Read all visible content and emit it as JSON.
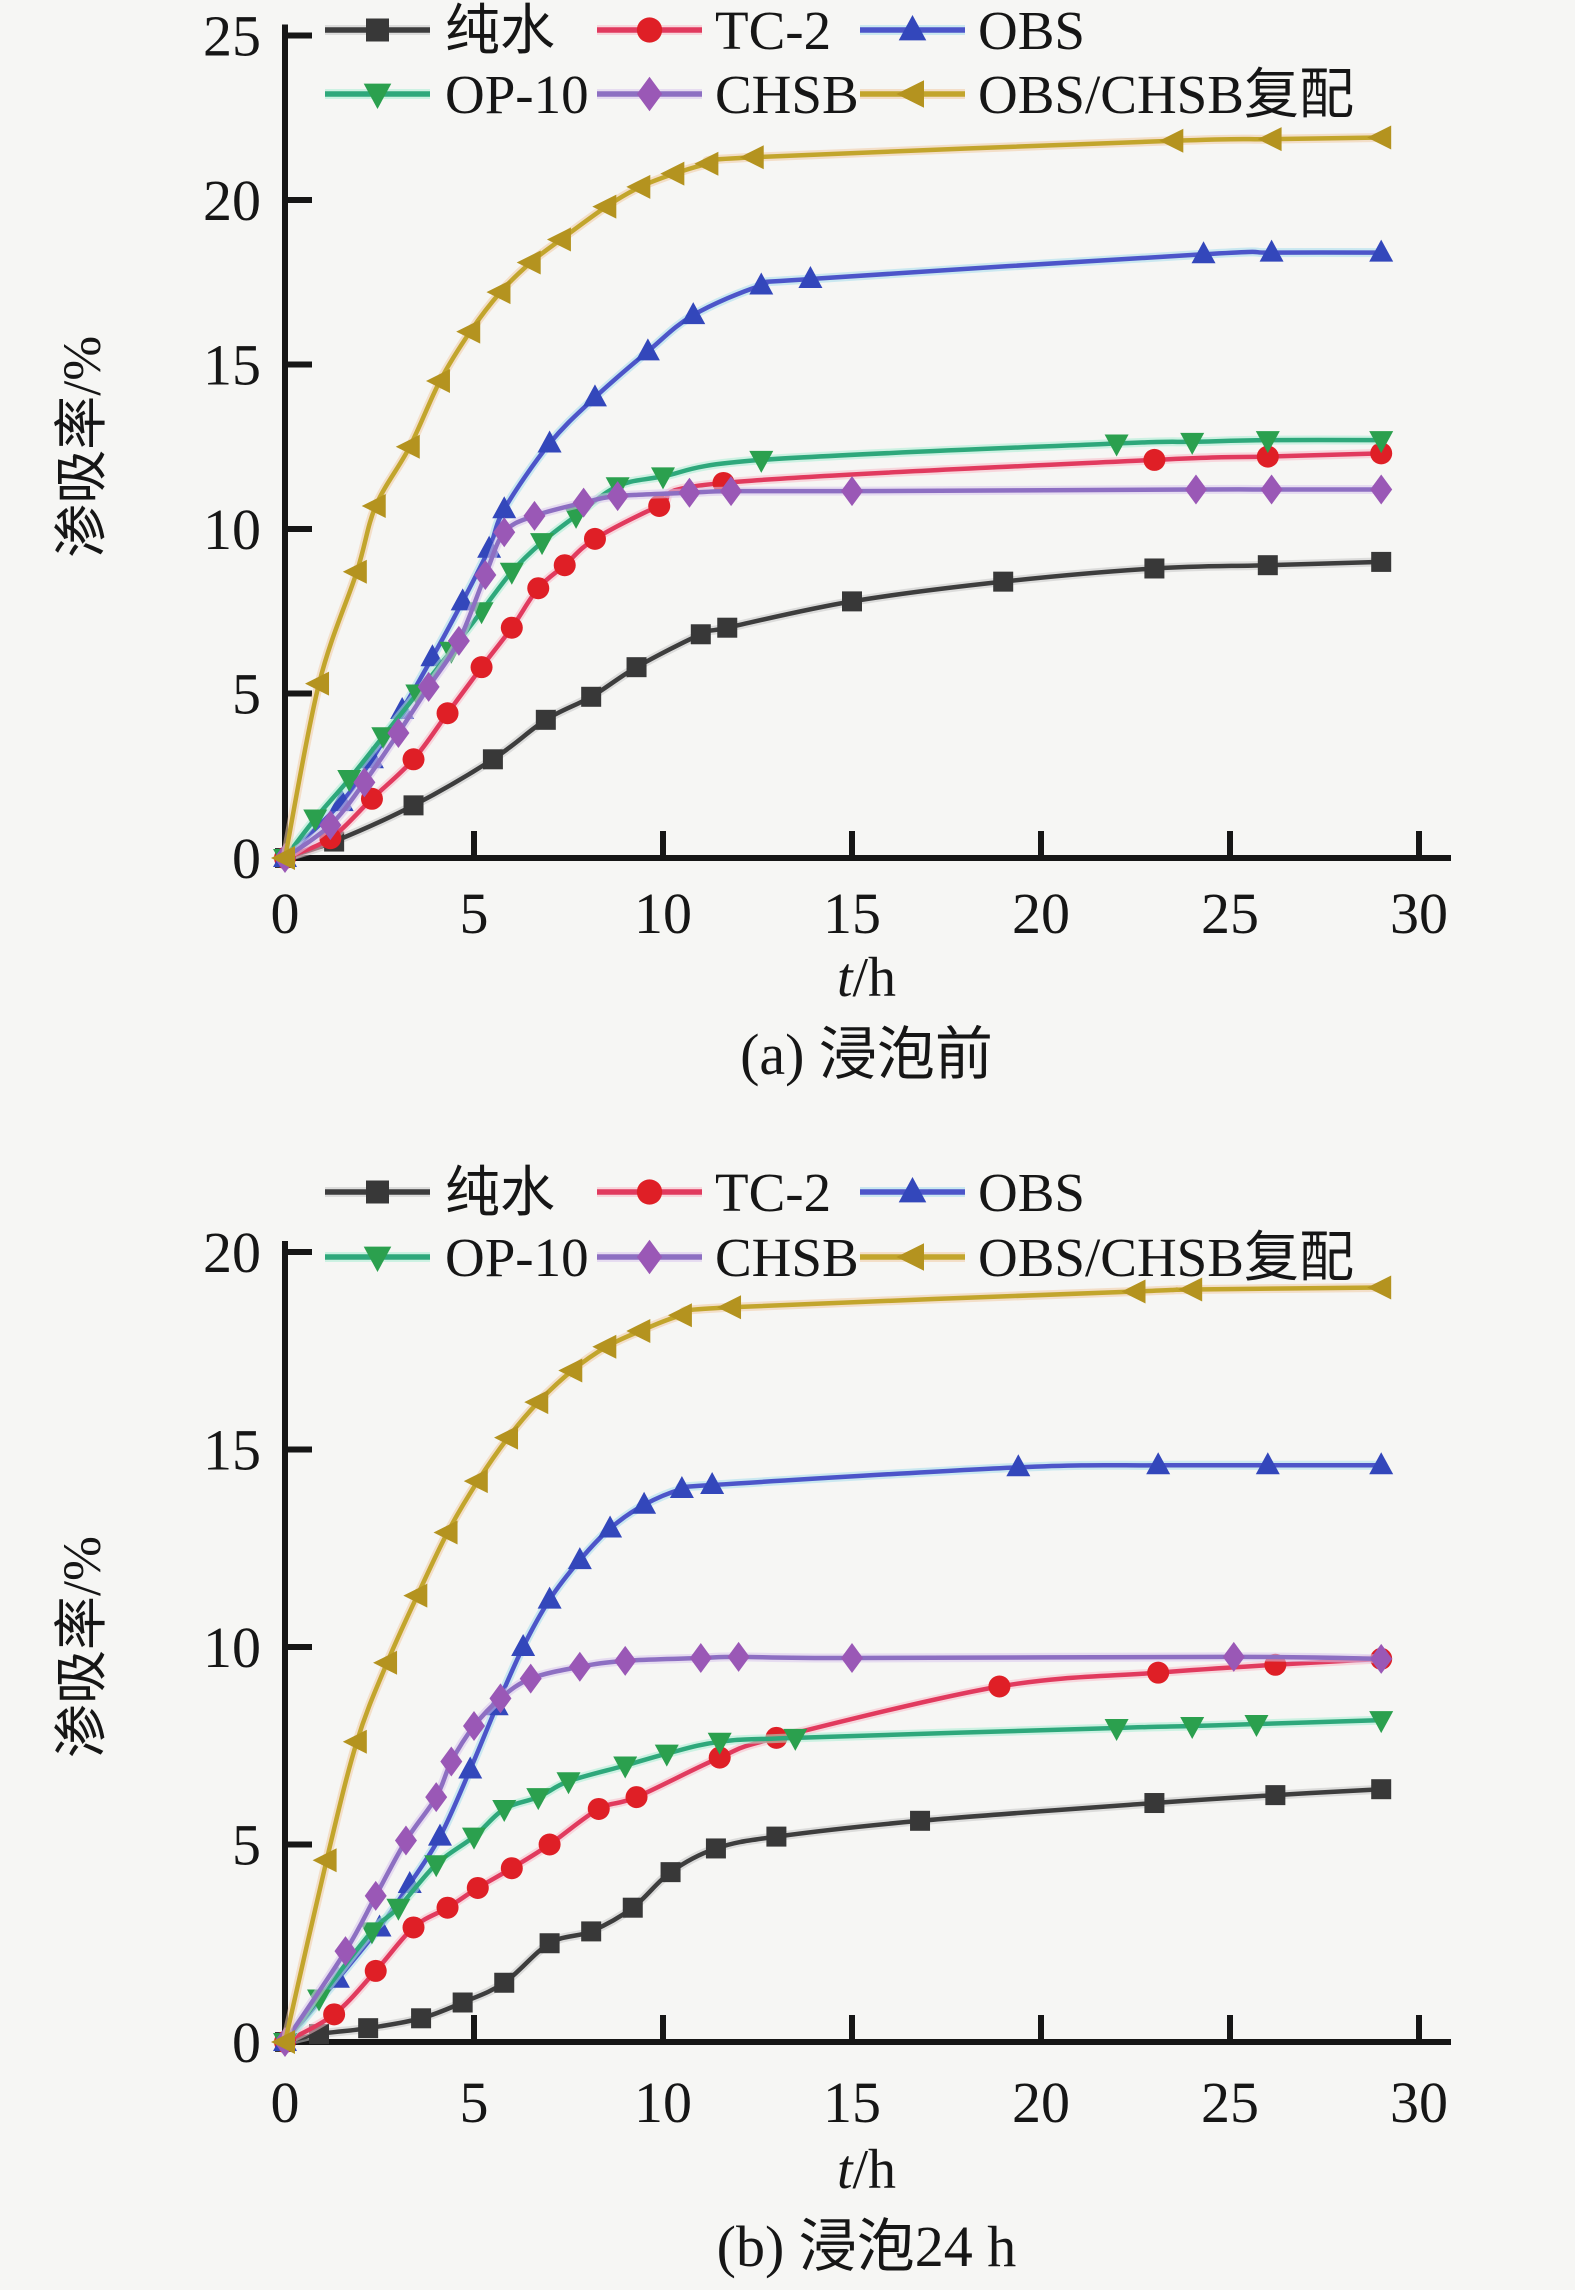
{
  "figure": {
    "background": "#f6f6f4",
    "axis_color": "#161616",
    "text_color": "#161616"
  },
  "chart_data": [
    {
      "id": "a",
      "type": "line",
      "caption": "(a) 浸泡前",
      "xlabel": "t/h",
      "ylabel": "渗吸率/%",
      "xlim": [
        0,
        30
      ],
      "ylim": [
        0,
        25
      ],
      "xticks": [
        0,
        5,
        10,
        15,
        20,
        25,
        30
      ],
      "yticks": [
        0,
        5,
        10,
        15,
        20,
        25
      ],
      "legend_rows": [
        [
          "纯水",
          "TC-2",
          "OBS"
        ],
        [
          "OP-10",
          "CHSB",
          "OBS/CHSB复配"
        ]
      ],
      "series": [
        {
          "name": "纯水",
          "marker": "square",
          "line_color": "#3d3d3d",
          "marker_color": "#383838",
          "halo_color": "#c6c6c6",
          "x": [
            0,
            1.3,
            3.4,
            5.5,
            6.9,
            8.1,
            9.3,
            11,
            11.7,
            15,
            19,
            23,
            26,
            29
          ],
          "y": [
            0,
            0.5,
            1.6,
            3.0,
            4.2,
            4.9,
            5.8,
            6.8,
            7.0,
            7.8,
            8.4,
            8.8,
            8.9,
            9.0
          ]
        },
        {
          "name": "TC-2",
          "marker": "circle",
          "line_color": "#e13a5e",
          "marker_color": "#df1f26",
          "halo_color": "#f8bcc8",
          "x": [
            0,
            1.2,
            2.3,
            3.4,
            4.3,
            5.2,
            6.0,
            6.7,
            7.4,
            8.2,
            9.9,
            11.6,
            23,
            26,
            29
          ],
          "y": [
            0,
            0.6,
            1.8,
            3.0,
            4.4,
            5.8,
            7.0,
            8.2,
            8.9,
            9.7,
            10.7,
            11.4,
            12.1,
            12.2,
            12.3
          ]
        },
        {
          "name": "OBS",
          "marker": "triangle-up",
          "line_color": "#4c55c9",
          "marker_color": "#3347bb",
          "halo_color": "#a5dced",
          "x": [
            0,
            1.5,
            2.3,
            3.1,
            3.9,
            4.7,
            5.4,
            5.8,
            7.0,
            8.2,
            9.6,
            10.8,
            12.6,
            13.9,
            24.3,
            26.1,
            29
          ],
          "y": [
            0,
            1.7,
            3.0,
            4.5,
            6.1,
            7.8,
            9.4,
            10.6,
            12.6,
            14.0,
            15.4,
            16.5,
            17.4,
            17.6,
            18.35,
            18.4,
            18.4
          ]
        },
        {
          "name": "OP-10",
          "marker": "triangle-down",
          "line_color": "#2ea87b",
          "marker_color": "#2ba04e",
          "halo_color": "#aaedd4",
          "x": [
            0,
            0.8,
            1.7,
            2.6,
            3.5,
            4.4,
            5.2,
            6.0,
            6.8,
            7.7,
            8.8,
            10.0,
            12.6,
            22,
            24,
            26,
            29
          ],
          "y": [
            0,
            1.2,
            2.4,
            3.7,
            5.0,
            6.3,
            7.5,
            8.7,
            9.6,
            10.4,
            11.3,
            11.6,
            12.1,
            12.6,
            12.65,
            12.7,
            12.7
          ]
        },
        {
          "name": "CHSB",
          "marker": "diamond",
          "line_color": "#8d6fc2",
          "marker_color": "#9a58b6",
          "halo_color": "#d9c6ec",
          "x": [
            0,
            1.2,
            2.1,
            3.0,
            3.8,
            4.6,
            5.3,
            5.8,
            6.6,
            7.9,
            8.8,
            10.7,
            11.8,
            15,
            24.1,
            26.1,
            29
          ],
          "y": [
            0,
            1.0,
            2.3,
            3.8,
            5.2,
            6.6,
            8.6,
            9.9,
            10.4,
            10.8,
            11.0,
            11.1,
            11.15,
            11.15,
            11.2,
            11.2,
            11.2
          ]
        },
        {
          "name": "OBS/CHSB复配",
          "marker": "triangle-left",
          "line_color": "#c2a52c",
          "marker_color": "#b4931f",
          "halo_color": "#f1cba4",
          "x": [
            0,
            0.9,
            1.9,
            2.4,
            3.3,
            4.1,
            4.9,
            5.7,
            6.5,
            7.3,
            8.5,
            9.4,
            10.3,
            11.2,
            12.4,
            23.5,
            26.1,
            29
          ],
          "y": [
            0,
            5.3,
            8.7,
            10.7,
            12.5,
            14.5,
            16.0,
            17.2,
            18.1,
            18.8,
            19.8,
            20.4,
            20.8,
            21.1,
            21.3,
            21.8,
            21.85,
            21.9
          ]
        }
      ]
    },
    {
      "id": "b",
      "type": "line",
      "caption": "(b) 浸泡24 h",
      "xlabel": "t/h",
      "ylabel": "渗吸率/%",
      "xlim": [
        0,
        30
      ],
      "ylim": [
        0,
        20
      ],
      "xticks": [
        0,
        5,
        10,
        15,
        20,
        25,
        30
      ],
      "yticks": [
        0,
        5,
        10,
        15,
        20
      ],
      "legend_rows": [
        [
          "纯水",
          "TC-2",
          "OBS"
        ],
        [
          "OP-10",
          "CHSB",
          "OBS/CHSB复配"
        ]
      ],
      "series": [
        {
          "name": "纯水",
          "marker": "square",
          "line_color": "#3d3d3d",
          "marker_color": "#383838",
          "halo_color": "#c6c6c6",
          "x": [
            0,
            0.9,
            2.2,
            3.6,
            4.7,
            5.8,
            7.0,
            8.1,
            9.2,
            10.2,
            11.4,
            13,
            16.8,
            23,
            26.2,
            29
          ],
          "y": [
            0,
            0.2,
            0.35,
            0.6,
            1.0,
            1.5,
            2.5,
            2.8,
            3.4,
            4.3,
            4.9,
            5.2,
            5.6,
            6.05,
            6.25,
            6.4
          ]
        },
        {
          "name": "TC-2",
          "marker": "circle",
          "line_color": "#e13a5e",
          "marker_color": "#df1f26",
          "halo_color": "#f8bcc8",
          "x": [
            0,
            1.3,
            2.4,
            3.4,
            4.3,
            5.1,
            6.0,
            7.0,
            8.3,
            9.3,
            11.5,
            13,
            18.9,
            23.1,
            26.2,
            29
          ],
          "y": [
            0,
            0.7,
            1.8,
            2.9,
            3.4,
            3.9,
            4.4,
            5.0,
            5.9,
            6.2,
            7.2,
            7.7,
            9.0,
            9.35,
            9.55,
            9.7
          ]
        },
        {
          "name": "OBS",
          "marker": "triangle-up",
          "line_color": "#4c55c9",
          "marker_color": "#3347bb",
          "halo_color": "#a5dced",
          "x": [
            0,
            1.4,
            2.5,
            3.3,
            4.1,
            4.9,
            5.6,
            6.3,
            7.0,
            7.8,
            8.6,
            9.5,
            10.5,
            11.3,
            19.4,
            23.1,
            26,
            29
          ],
          "y": [
            0,
            1.6,
            2.9,
            4.0,
            5.2,
            6.9,
            8.5,
            10.0,
            11.2,
            12.2,
            13.0,
            13.6,
            14.0,
            14.1,
            14.55,
            14.6,
            14.6,
            14.6
          ]
        },
        {
          "name": "OP-10",
          "marker": "triangle-down",
          "line_color": "#2ea87b",
          "marker_color": "#2ba04e",
          "halo_color": "#aaedd4",
          "x": [
            0,
            0.9,
            2.3,
            3.0,
            4.0,
            5.0,
            5.8,
            6.7,
            7.5,
            9.0,
            10.1,
            11.5,
            13.5,
            22,
            24,
            25.7,
            29
          ],
          "y": [
            0,
            1.1,
            2.8,
            3.4,
            4.5,
            5.2,
            5.9,
            6.2,
            6.6,
            7.0,
            7.3,
            7.6,
            7.7,
            7.95,
            8.0,
            8.05,
            8.15
          ]
        },
        {
          "name": "CHSB",
          "marker": "diamond",
          "line_color": "#8d6fc2",
          "marker_color": "#9a58b6",
          "halo_color": "#d9c6ec",
          "x": [
            0,
            1.6,
            2.4,
            3.2,
            4.0,
            4.4,
            5.0,
            5.7,
            6.5,
            7.8,
            9.0,
            11,
            12,
            15,
            25.1,
            29
          ],
          "y": [
            0,
            2.3,
            3.7,
            5.1,
            6.2,
            7.1,
            8.0,
            8.7,
            9.2,
            9.5,
            9.65,
            9.72,
            9.75,
            9.72,
            9.75,
            9.7
          ]
        },
        {
          "name": "OBS/CHSB复配",
          "marker": "triangle-left",
          "line_color": "#c2a52c",
          "marker_color": "#b4931f",
          "halo_color": "#f1cba4",
          "x": [
            0,
            1.1,
            1.9,
            2.7,
            3.5,
            4.3,
            5.1,
            5.9,
            6.7,
            7.6,
            8.5,
            9.4,
            10.5,
            11.8,
            22.5,
            24,
            29
          ],
          "y": [
            0,
            4.6,
            7.6,
            9.6,
            11.3,
            12.9,
            14.2,
            15.3,
            16.2,
            17.0,
            17.6,
            18.0,
            18.4,
            18.6,
            19.0,
            19.05,
            19.1
          ]
        }
      ]
    }
  ]
}
